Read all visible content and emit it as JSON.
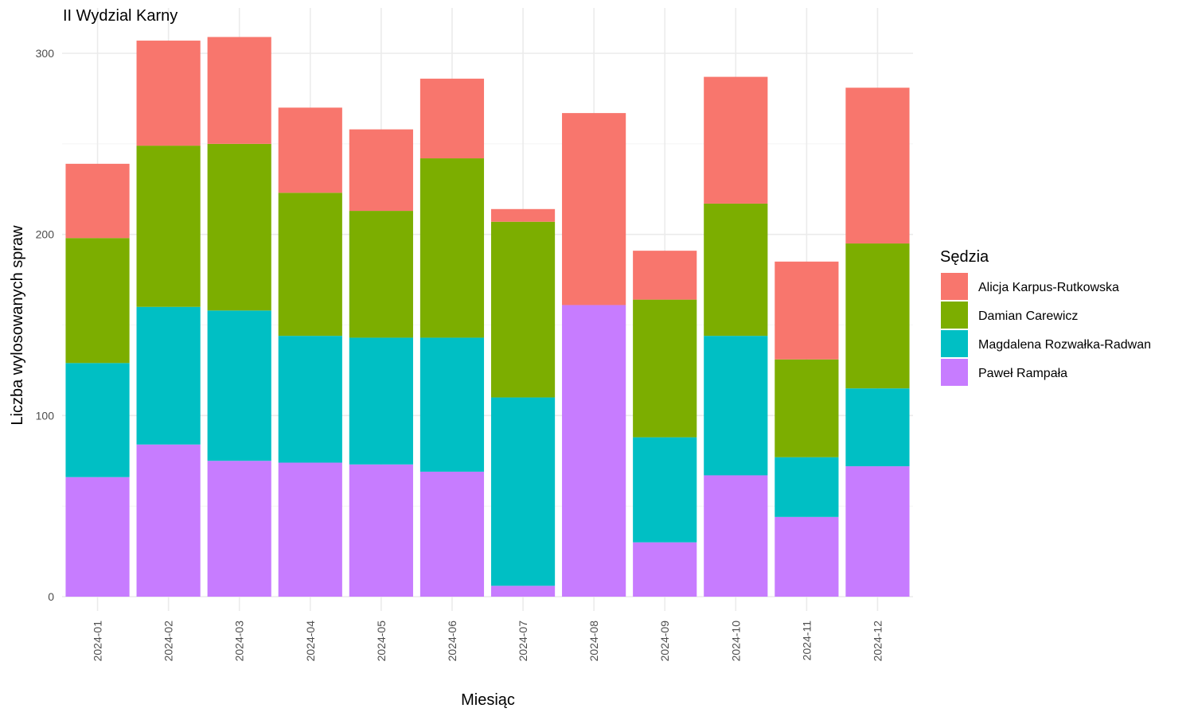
{
  "chart_data": {
    "type": "bar",
    "stacked": true,
    "title": "II Wydzial Karny",
    "xlabel": "Miesiąc",
    "ylabel": "Liczba wylosowanych spraw",
    "ylim": [
      0,
      320
    ],
    "yticks": [
      0,
      100,
      200,
      300
    ],
    "grid": true,
    "legend_title": "Sędzia",
    "legend_position": "right",
    "categories": [
      "2024-01",
      "2024-02",
      "2024-03",
      "2024-04",
      "2024-05",
      "2024-06",
      "2024-07",
      "2024-08",
      "2024-09",
      "2024-10",
      "2024-11",
      "2024-12"
    ],
    "series": [
      {
        "name": "Paweł Rampała",
        "color": "#C77CFF",
        "values": [
          66,
          84,
          75,
          74,
          73,
          69,
          6,
          161,
          30,
          67,
          44,
          72
        ]
      },
      {
        "name": "Magdalena Rozwałka-Radwan",
        "color": "#00BFC4",
        "values": [
          63,
          76,
          83,
          70,
          70,
          74,
          104,
          0,
          58,
          77,
          33,
          43
        ]
      },
      {
        "name": "Damian Carewicz",
        "color": "#7CAE00",
        "values": [
          69,
          89,
          92,
          79,
          70,
          99,
          97,
          0,
          76,
          73,
          54,
          80
        ]
      },
      {
        "name": "Alicja Karpus-Rutkowska",
        "color": "#F8766D",
        "values": [
          41,
          58,
          59,
          47,
          45,
          44,
          7,
          106,
          27,
          70,
          54,
          86
        ]
      }
    ],
    "legend_order": [
      "Alicja Karpus-Rutkowska",
      "Damian Carewicz",
      "Magdalena Rozwałka-Radwan",
      "Paweł Rampała"
    ]
  }
}
